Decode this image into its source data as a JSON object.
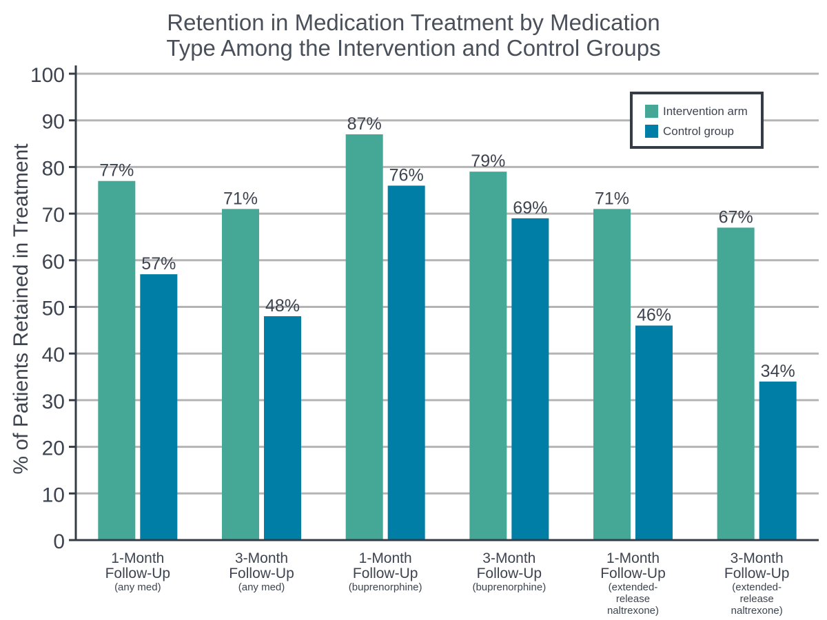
{
  "chart_data": {
    "type": "bar",
    "title": [
      "Retention in Medication Treatment by Medication",
      "Type Among the Intervention and Control Groups"
    ],
    "xlabel": "",
    "ylabel": "% of Patients Retained in Treatment",
    "ylim": [
      0,
      100
    ],
    "yticks": [
      "0",
      "10",
      "20",
      "30",
      "40",
      "50",
      "60",
      "70",
      "80",
      "90",
      "100"
    ],
    "grid": true,
    "legend_position": "top-right",
    "categories": [
      [
        "1-Month",
        "Follow-Up",
        "(any med)"
      ],
      [
        "3-Month",
        "Follow-Up",
        "(any med)"
      ],
      [
        "1-Month",
        "Follow-Up",
        "(buprenorphine)"
      ],
      [
        "3-Month",
        "Follow-Up",
        "(buprenorphine)"
      ],
      [
        "1-Month",
        "Follow-Up",
        "(extended-",
        "release",
        "naltrexone)"
      ],
      [
        "3-Month",
        "Follow-Up",
        "(extended-",
        "release",
        "naltrexone)"
      ]
    ],
    "series": [
      {
        "name": "Intervention arm",
        "color": "#45a795",
        "values": [
          77,
          71,
          87,
          79,
          71,
          67
        ],
        "labels": [
          "77%",
          "71%",
          "87%",
          "79%",
          "71%",
          "67%"
        ]
      },
      {
        "name": "Control group",
        "color": "#007ea5",
        "values": [
          57,
          48,
          76,
          69,
          46,
          34
        ],
        "labels": [
          "57%",
          "48%",
          "76%",
          "69%",
          "46%",
          "34%"
        ]
      }
    ]
  }
}
